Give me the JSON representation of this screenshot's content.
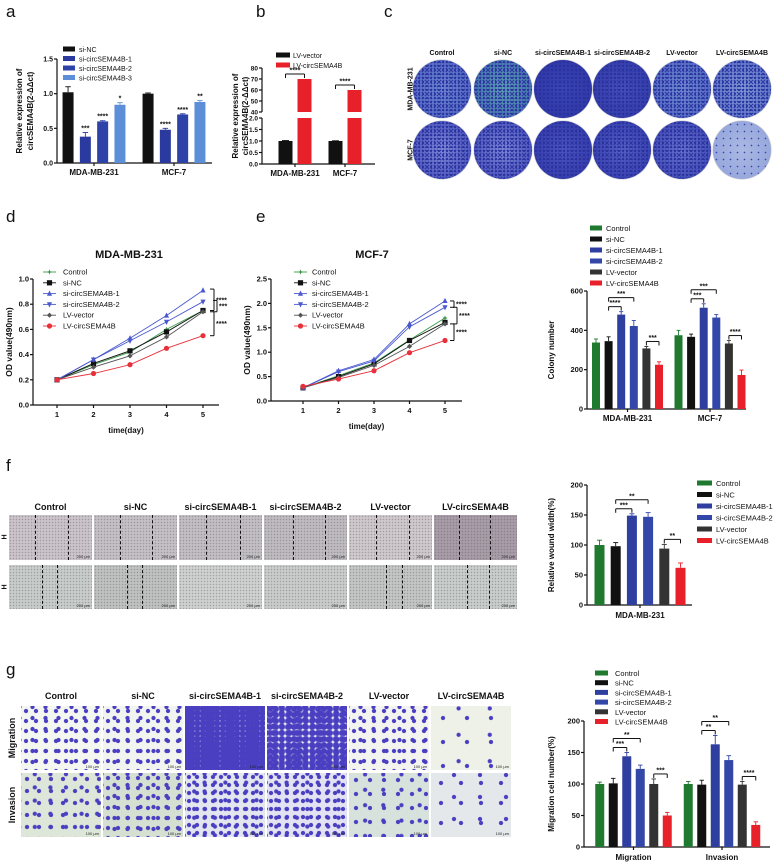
{
  "panel_letters": {
    "a": "a",
    "b": "b",
    "c": "c",
    "d": "d",
    "e": "e",
    "f": "f",
    "g": "g"
  },
  "colony_images": {
    "columns": [
      "Control",
      "si-NC",
      "si-circSEMA4B-1",
      "si-circSEMA4B-2",
      "LV-vector",
      "LV-circSEMA4B"
    ],
    "rows": [
      "MDA-MB-231",
      "MCF-7"
    ]
  },
  "wound_images": {
    "columns": [
      "Control",
      "si-NC",
      "si-circSEMA4B-1",
      "si-circSEMA4B-2",
      "LV-vector",
      "LV-circSEMA4B"
    ],
    "rows": [
      "H",
      "H"
    ],
    "scale_label": "200 μm"
  },
  "transwell_images": {
    "columns": [
      "Control",
      "si-NC",
      "si-circSEMA4B-1",
      "si-circSEMA4B-2",
      "LV-vector",
      "LV-circSEMA4B"
    ],
    "rows": [
      "Migration",
      "Invasion"
    ],
    "scale_label": "100 μm"
  },
  "chart_data": [
    {
      "type": "bar",
      "panel": "a",
      "categories": [
        "MDA-MB-231",
        "MCF-7"
      ],
      "series": [
        {
          "name": "si-NC",
          "color": "#111111",
          "values": [
            1.02,
            1.0
          ],
          "errors": [
            0.08,
            0.01
          ]
        },
        {
          "name": "si-circSEMA4B-1",
          "color": "#2b3a9e",
          "values": [
            0.38,
            0.48
          ],
          "errors": [
            0.06,
            0.02
          ]
        },
        {
          "name": "si-circSEMA4B-2",
          "color": "#2e43a8",
          "values": [
            0.6,
            0.7
          ],
          "errors": [
            0.01,
            0.01
          ]
        },
        {
          "name": "si-circSEMA4B-3",
          "color": "#5d8fd8",
          "values": [
            0.84,
            0.88
          ],
          "errors": [
            0.03,
            0.02
          ]
        }
      ],
      "ylabel": [
        "Relative expression of",
        "circSEMA4B(2-ΔΔct)"
      ],
      "ylim": [
        0,
        1.5
      ],
      "yticks": [
        "0.0",
        "0.5",
        "1.0",
        "1.5"
      ],
      "legend": "top-left",
      "annotations": [
        {
          "group": 0,
          "series": 1,
          "text": "***"
        },
        {
          "group": 0,
          "series": 2,
          "text": "****"
        },
        {
          "group": 0,
          "series": 3,
          "text": "*"
        },
        {
          "group": 1,
          "series": 1,
          "text": "****"
        },
        {
          "group": 1,
          "series": 2,
          "text": "****"
        },
        {
          "group": 1,
          "series": 3,
          "text": "**"
        }
      ]
    },
    {
      "type": "bar",
      "panel": "b",
      "categories": [
        "MDA-MB-231",
        "MCF-7"
      ],
      "series": [
        {
          "name": "LV-vector",
          "color": "#111111",
          "values": [
            1.0,
            1.0
          ],
          "errors": [
            0.02,
            0.01
          ]
        },
        {
          "name": "LV-circSEMA4B",
          "color": "#e8202a",
          "values": [
            70,
            60
          ],
          "errors": [
            0,
            0
          ]
        }
      ],
      "ylabel": [
        "Relative expression of",
        "circSEMA4B(2-ΔΔct)"
      ],
      "y_axis_break": [
        [
          0,
          2
        ],
        [
          40,
          80
        ]
      ],
      "yticks": [
        "0.0",
        "0.5",
        "1.0",
        "1.5",
        "2.0",
        "40",
        "50",
        "60",
        "70",
        "80"
      ],
      "legend": "top-left",
      "annotations": [
        {
          "group": 0,
          "pair": [
            0,
            1
          ],
          "text": "****"
        },
        {
          "group": 1,
          "pair": [
            0,
            1
          ],
          "text": "****"
        }
      ]
    },
    {
      "type": "line",
      "panel": "d",
      "title": "MDA-MB-231",
      "xlabel": "time(day)",
      "ylabel": "OD value(490nm)",
      "x": [
        1,
        2,
        3,
        4,
        5
      ],
      "xticks": [
        "1",
        "2",
        "3",
        "4",
        "5"
      ],
      "ylim": [
        0,
        1.0
      ],
      "yticks": [
        "0.0",
        "0.2",
        "0.4",
        "0.6",
        "0.8",
        "1.0"
      ],
      "legend": "top-left",
      "series": [
        {
          "name": "Control",
          "color": "#3a9a4a",
          "marker": "star",
          "values": [
            0.2,
            0.32,
            0.42,
            0.6,
            0.75
          ]
        },
        {
          "name": "si-NC",
          "color": "#111111",
          "marker": "square",
          "values": [
            0.2,
            0.33,
            0.43,
            0.58,
            0.75
          ]
        },
        {
          "name": "si-circSEMA4B-1",
          "color": "#4a58d0",
          "marker": "triangle-up",
          "values": [
            0.2,
            0.36,
            0.53,
            0.71,
            0.91
          ]
        },
        {
          "name": "si-circSEMA4B-2",
          "color": "#4a58d0",
          "marker": "triangle-down",
          "values": [
            0.2,
            0.36,
            0.51,
            0.66,
            0.82
          ]
        },
        {
          "name": "LV-vector",
          "color": "#555555",
          "marker": "diamond",
          "values": [
            0.2,
            0.3,
            0.39,
            0.54,
            0.74
          ]
        },
        {
          "name": "LV-circSEMA4B",
          "color": "#e8303a",
          "marker": "circle",
          "values": [
            0.2,
            0.25,
            0.32,
            0.45,
            0.55
          ]
        }
      ],
      "annotations": [
        {
          "from": 0.92,
          "to": 0.75,
          "text": "****"
        },
        {
          "from": 0.83,
          "to": 0.74,
          "text": "***"
        },
        {
          "from": 0.74,
          "to": 0.55,
          "text": "****"
        }
      ]
    },
    {
      "type": "line",
      "panel": "e",
      "title": "MCF-7",
      "xlabel": "time(day)",
      "ylabel": "OD value(490nm)",
      "x": [
        1,
        2,
        3,
        4,
        5
      ],
      "xticks": [
        "1",
        "2",
        "3",
        "4",
        "5"
      ],
      "ylim": [
        0,
        2.5
      ],
      "yticks": [
        "0.0",
        "0.5",
        "1.0",
        "1.5",
        "2.0",
        "2.5"
      ],
      "legend": "top-left",
      "series": [
        {
          "name": "Control",
          "color": "#3a9a4a",
          "marker": "star",
          "values": [
            0.27,
            0.52,
            0.78,
            1.25,
            1.7
          ]
        },
        {
          "name": "si-NC",
          "color": "#111111",
          "marker": "square",
          "values": [
            0.27,
            0.5,
            0.76,
            1.24,
            1.61
          ]
        },
        {
          "name": "si-circSEMA4B-1",
          "color": "#4a58d0",
          "marker": "triangle-up",
          "values": [
            0.27,
            0.62,
            0.85,
            1.58,
            2.05
          ]
        },
        {
          "name": "si-circSEMA4B-2",
          "color": "#4a58d0",
          "marker": "triangle-down",
          "values": [
            0.27,
            0.6,
            0.82,
            1.52,
            1.92
          ]
        },
        {
          "name": "LV-vector",
          "color": "#555555",
          "marker": "diamond",
          "values": [
            0.27,
            0.48,
            0.73,
            1.12,
            1.58
          ]
        },
        {
          "name": "LV-circSEMA4B",
          "color": "#e8303a",
          "marker": "circle",
          "values": [
            0.3,
            0.45,
            0.62,
            0.99,
            1.24
          ]
        }
      ],
      "annotations": [
        {
          "from": 2.05,
          "to": 1.92,
          "text": "****"
        },
        {
          "from": 1.92,
          "to": 1.58,
          "text": "****"
        },
        {
          "from": 1.58,
          "to": 1.24,
          "text": "****"
        }
      ]
    },
    {
      "type": "bar",
      "panel": "c-quant",
      "categories": [
        "MDA-MB-231",
        "MCF-7"
      ],
      "series": [
        {
          "name": "Control",
          "color": "#1f7a2f",
          "values": [
            338,
            375
          ],
          "errors": [
            18,
            25
          ]
        },
        {
          "name": "si-NC",
          "color": "#111111",
          "values": [
            345,
            367
          ],
          "errors": [
            22,
            14
          ]
        },
        {
          "name": "si-circSEMA4B-1",
          "color": "#2e3fa0",
          "values": [
            480,
            515
          ],
          "errors": [
            15,
            20
          ]
        },
        {
          "name": "si-circSEMA4B-2",
          "color": "#3347a8",
          "values": [
            422,
            465
          ],
          "errors": [
            28,
            15
          ]
        },
        {
          "name": "LV-vector",
          "color": "#333333",
          "values": [
            308,
            333
          ],
          "errors": [
            10,
            15
          ]
        },
        {
          "name": "LV-circSEMA4B",
          "color": "#e8202a",
          "values": [
            225,
            173
          ],
          "errors": [
            15,
            25
          ]
        }
      ],
      "ylabel": [
        "Colony number"
      ],
      "ylim": [
        0,
        600
      ],
      "yticks": [
        "0",
        "200",
        "400",
        "600"
      ],
      "legend": "top",
      "annotations": [
        {
          "group": 0,
          "pair": [
            1,
            2
          ],
          "text": "****"
        },
        {
          "group": 0,
          "pair": [
            1,
            3
          ],
          "text": "***"
        },
        {
          "group": 0,
          "pair": [
            4,
            5
          ],
          "text": "***"
        },
        {
          "group": 1,
          "pair": [
            1,
            2
          ],
          "text": "***"
        },
        {
          "group": 1,
          "pair": [
            1,
            3
          ],
          "text": "***"
        },
        {
          "group": 1,
          "pair": [
            4,
            5
          ],
          "text": "****"
        }
      ]
    },
    {
      "type": "bar",
      "panel": "f",
      "categories": [
        "MDA-MB-231"
      ],
      "series": [
        {
          "name": "Control",
          "color": "#1f7a2f",
          "values": [
            100
          ],
          "errors": [
            8
          ]
        },
        {
          "name": "si-NC",
          "color": "#111111",
          "values": [
            98
          ],
          "errors": [
            6
          ]
        },
        {
          "name": "si-circSEMA4B-1",
          "color": "#2e3fa0",
          "values": [
            149
          ],
          "errors": [
            3
          ]
        },
        {
          "name": "si-circSEMA4B-2",
          "color": "#3347a8",
          "values": [
            147
          ],
          "errors": [
            7
          ]
        },
        {
          "name": "LV-vector",
          "color": "#333333",
          "values": [
            94
          ],
          "errors": [
            7
          ]
        },
        {
          "name": "LV-circSEMA4B",
          "color": "#e8202a",
          "values": [
            62
          ],
          "errors": [
            8
          ]
        }
      ],
      "ylabel": [
        "Relative wound width(%)"
      ],
      "ylim": [
        0,
        200
      ],
      "yticks": [
        "0",
        "50",
        "100",
        "150",
        "200"
      ],
      "legend": "right",
      "annotations": [
        {
          "group": 0,
          "pair": [
            1,
            2
          ],
          "text": "***"
        },
        {
          "group": 0,
          "pair": [
            1,
            3
          ],
          "text": "**"
        },
        {
          "group": 0,
          "pair": [
            4,
            5
          ],
          "text": "**"
        }
      ]
    },
    {
      "type": "bar",
      "panel": "g",
      "categories": [
        "Migration",
        "Invasion"
      ],
      "series": [
        {
          "name": "Control",
          "color": "#1f7a2f",
          "values": [
            100,
            100
          ],
          "errors": [
            3,
            4
          ]
        },
        {
          "name": "si-NC",
          "color": "#111111",
          "values": [
            101,
            99
          ],
          "errors": [
            8,
            7
          ]
        },
        {
          "name": "si-circSEMA4B-1",
          "color": "#2e3fa0",
          "values": [
            144,
            163
          ],
          "errors": [
            6,
            14
          ]
        },
        {
          "name": "si-circSEMA4B-2",
          "color": "#3347a8",
          "values": [
            124,
            138
          ],
          "errors": [
            6,
            7
          ]
        },
        {
          "name": "LV-vector",
          "color": "#333333",
          "values": [
            100,
            99
          ],
          "errors": [
            8,
            5
          ]
        },
        {
          "name": "LV-circSEMA4B",
          "color": "#e8202a",
          "values": [
            50,
            35
          ],
          "errors": [
            5,
            5
          ]
        }
      ],
      "ylabel": [
        "Migration cell number(%)"
      ],
      "ylim": [
        0,
        200
      ],
      "yticks": [
        "0",
        "50",
        "100",
        "150",
        "200"
      ],
      "legend": "top",
      "annotations": [
        {
          "group": 0,
          "pair": [
            1,
            2
          ],
          "text": "***"
        },
        {
          "group": 0,
          "pair": [
            1,
            3
          ],
          "text": "**"
        },
        {
          "group": 0,
          "pair": [
            4,
            5
          ],
          "text": "***"
        },
        {
          "group": 1,
          "pair": [
            1,
            2
          ],
          "text": "**"
        },
        {
          "group": 1,
          "pair": [
            1,
            3
          ],
          "text": "**"
        },
        {
          "group": 1,
          "pair": [
            4,
            5
          ],
          "text": "****"
        }
      ]
    }
  ]
}
